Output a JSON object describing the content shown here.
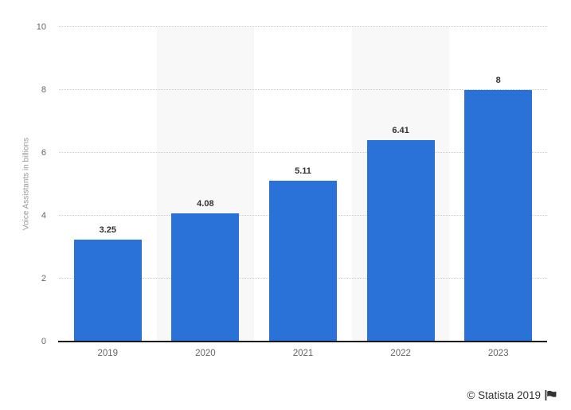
{
  "chart_data": {
    "type": "bar",
    "categories": [
      "2019",
      "2020",
      "2021",
      "2022",
      "2023"
    ],
    "values": [
      3.25,
      4.08,
      5.11,
      6.41,
      8
    ],
    "value_labels": [
      "3.25",
      "4.08",
      "5.11",
      "6.41",
      "8"
    ],
    "title": "",
    "xlabel": "",
    "ylabel": "Voice Assistants in billions",
    "ylim": [
      0,
      10
    ],
    "yticks": [
      0,
      2,
      4,
      6,
      8,
      10
    ],
    "grid": "horizontal-dotted",
    "legend_position": "none",
    "highlighted_columns": [
      "2020",
      "2022"
    ]
  },
  "colors": {
    "bar": "#2a71d8",
    "column_band": "#f8f8f8",
    "gridline": "#cccccc",
    "axis_line": "#1a1a1a",
    "tick_label": "#666666",
    "value_label": "#333333",
    "axis_title": "#999999",
    "credit_text": "#333333"
  },
  "credit": {
    "text": "© Statista 2019",
    "icon": "flag-icon"
  }
}
